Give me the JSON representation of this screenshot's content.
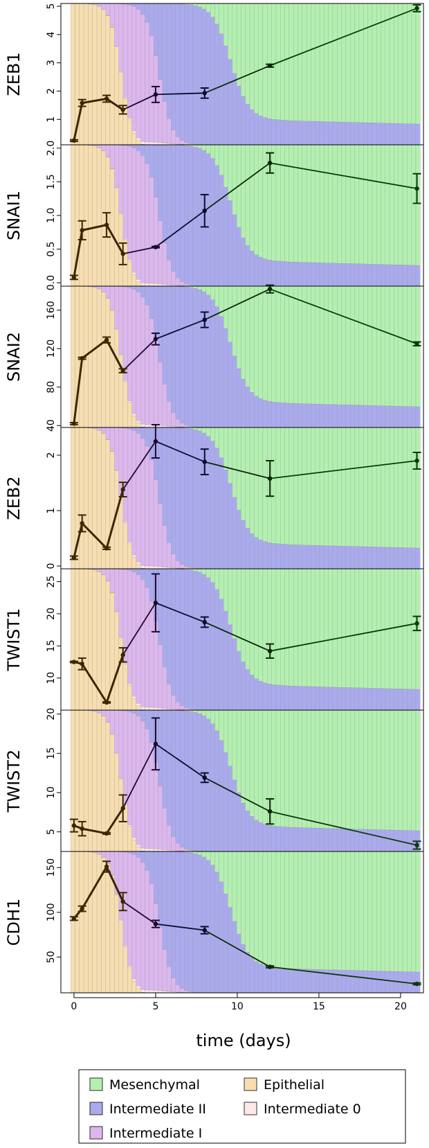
{
  "chart_data": {
    "type": "line",
    "xlabel": "time (days)",
    "xlim": [
      -0.8,
      21.4
    ],
    "xticks": [
      0,
      5,
      10,
      15,
      20
    ],
    "x": [
      0,
      0.5,
      2,
      3,
      5,
      8,
      12,
      21
    ],
    "background_states": {
      "description_free": true,
      "day_max": 21.4,
      "fractions_by_day": {
        "epithelial_until": 2.9,
        "intermediate1_until": 5.2,
        "intermediate2_until": 9.6,
        "late_mesenchymal_fraction": 0.82
      }
    },
    "legend": {
      "placement": "bottom",
      "entries": [
        {
          "label": "Mesenchymal",
          "color": "#b3f0b0"
        },
        {
          "label": "Epithelial",
          "color": "#f7deb0"
        },
        {
          "label": "Intermediate II",
          "color": "#aaaaee"
        },
        {
          "label": "Intermediate 0",
          "color": "#fde8e8"
        },
        {
          "label": "Intermediate I",
          "color": "#dcb7ee"
        }
      ]
    },
    "panels": [
      {
        "gene": "ZEB1",
        "ylim": [
          0.1,
          5.1
        ],
        "yticks": [
          1,
          2,
          3,
          4,
          5
        ],
        "ytick_labels": [
          "1",
          "2",
          "3",
          "4",
          "5"
        ],
        "y": [
          0.25,
          1.58,
          1.73,
          1.34,
          1.88,
          1.93,
          2.9,
          4.93
        ],
        "err": [
          0.03,
          0.12,
          0.12,
          0.15,
          0.28,
          0.18,
          0.05,
          0.12
        ]
      },
      {
        "gene": "SNAI1",
        "ylim": [
          -0.05,
          2.05
        ],
        "yticks": [
          0.0,
          0.5,
          1.0,
          1.5,
          2.0
        ],
        "ytick_labels": [
          "0.0",
          "0.5",
          "1.0",
          "1.5",
          "2.0"
        ],
        "y": [
          0.08,
          0.78,
          0.86,
          0.43,
          0.53,
          1.07,
          1.78,
          1.4
        ],
        "err": [
          0.03,
          0.14,
          0.18,
          0.16,
          0.01,
          0.24,
          0.15,
          0.22
        ]
      },
      {
        "gene": "SNAI2",
        "ylim": [
          38,
          185
        ],
        "yticks": [
          40,
          80,
          120,
          160
        ],
        "ytick_labels": [
          "40",
          "80",
          "120",
          "160"
        ],
        "y": [
          42,
          110,
          129,
          97,
          130,
          150,
          182,
          125
        ],
        "err": [
          1,
          1,
          3,
          2,
          6,
          8,
          4,
          2
        ]
      },
      {
        "gene": "ZEB2",
        "ylim": [
          -0.05,
          2.5
        ],
        "yticks": [
          0,
          1,
          2
        ],
        "ytick_labels": [
          "0",
          "1",
          "2"
        ],
        "y": [
          0.15,
          0.77,
          0.32,
          1.38,
          2.25,
          1.88,
          1.58,
          1.9
        ],
        "err": [
          0.03,
          0.15,
          0.02,
          0.13,
          0.3,
          0.23,
          0.32,
          0.15
        ]
      },
      {
        "gene": "TWIST1",
        "ylim": [
          5,
          27
        ],
        "yticks": [
          10,
          15,
          20,
          25
        ],
        "ytick_labels": [
          "10",
          "15",
          "20",
          "25"
        ],
        "y": [
          12.5,
          12.2,
          6.2,
          13.6,
          21.7,
          18.7,
          14.2,
          18.5
        ],
        "err": [
          0.1,
          0.9,
          0.1,
          1.1,
          4.5,
          0.8,
          1.1,
          1.1
        ]
      },
      {
        "gene": "TWIST2",
        "ylim": [
          2.5,
          20.5
        ],
        "yticks": [
          5,
          10,
          15,
          20
        ],
        "ytick_labels": [
          "5",
          "10",
          "15",
          "20"
        ],
        "y": [
          5.8,
          5.4,
          4.8,
          8.0,
          16.2,
          11.9,
          7.6,
          3.3
        ],
        "err": [
          0.8,
          0.9,
          0.1,
          1.7,
          3.3,
          0.6,
          1.6,
          0.5
        ]
      },
      {
        "gene": "CDH1",
        "ylim": [
          10,
          168
        ],
        "yticks": [
          50,
          100,
          150
        ],
        "ytick_labels": [
          "50",
          "100",
          "150"
        ],
        "y": [
          93,
          104,
          151,
          112,
          87,
          80,
          39,
          20
        ],
        "err": [
          2,
          3,
          6,
          10,
          4,
          4,
          1,
          1
        ]
      }
    ]
  }
}
